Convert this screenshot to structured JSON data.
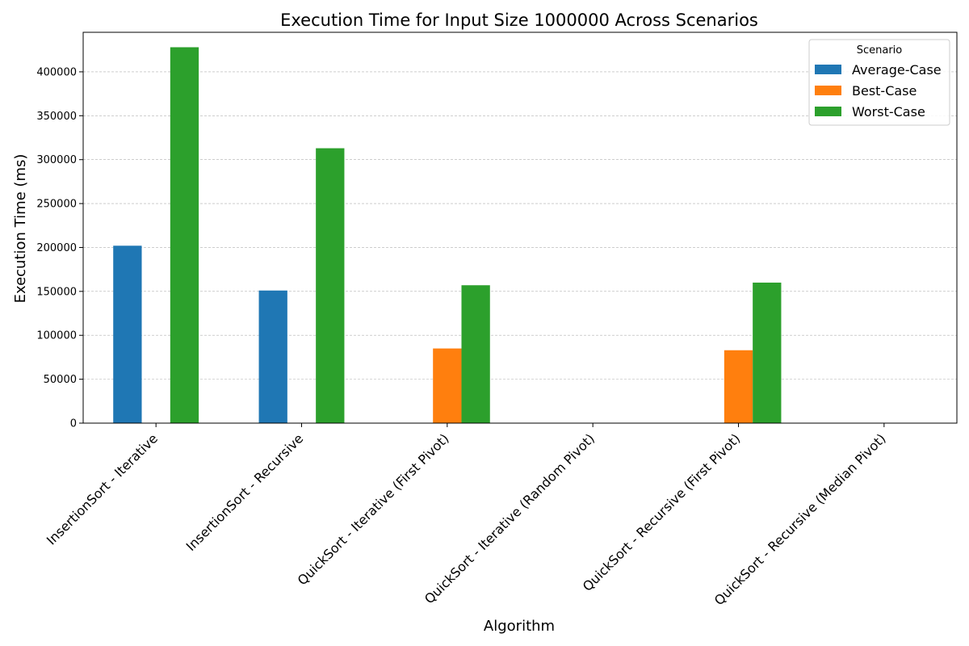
{
  "chart_data": {
    "type": "bar",
    "title": "Execution Time for Input Size 1000000 Across Scenarios",
    "xlabel": "Algorithm",
    "ylabel": "Execution Time (ms)",
    "categories": [
      "InsertionSort - Iterative",
      "InsertionSort - Recursive",
      "QuickSort - Iterative (First Pivot)",
      "QuickSort - Iterative (Random Pivot)",
      "QuickSort - Recursive (First Pivot)",
      "QuickSort - Recursive (Median Pivot)"
    ],
    "series": [
      {
        "name": "Average-Case",
        "color": "#1f77b4",
        "values": [
          202000,
          151000,
          null,
          null,
          null,
          null
        ]
      },
      {
        "name": "Best-Case",
        "color": "#ff7f0e",
        "values": [
          null,
          null,
          85000,
          null,
          83000,
          null
        ]
      },
      {
        "name": "Worst-Case",
        "color": "#2ca02c",
        "values": [
          428000,
          313000,
          157000,
          null,
          160000,
          null
        ]
      }
    ],
    "ylim": [
      0,
      445000
    ],
    "yticks": [
      0,
      50000,
      100000,
      150000,
      200000,
      250000,
      300000,
      350000,
      400000
    ],
    "grid": "y",
    "legend": {
      "title": "Scenario",
      "position": "top-right"
    }
  }
}
